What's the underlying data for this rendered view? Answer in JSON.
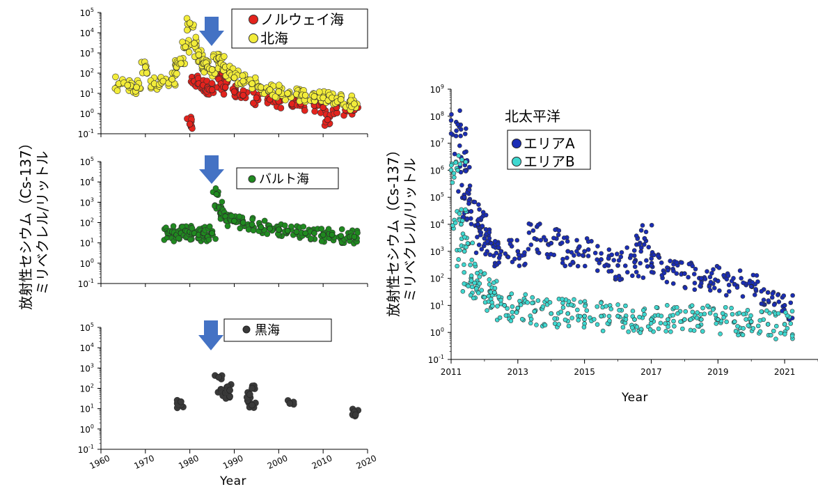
{
  "y_axis_title_line1": "放射性セシウム（Cs-137）",
  "y_axis_title_line2": "ミリベクレル/リットル",
  "ytick_base": "10",
  "chart_data": [
    {
      "id": "norway-north",
      "type": "scatter",
      "xlim": [
        1960,
        2020
      ],
      "ylim_log10": [
        -1,
        5
      ],
      "ytick_exponents": [
        "5",
        "4",
        "3",
        "2",
        "1",
        "0",
        "-1"
      ],
      "annotation": "arrow at 1986",
      "series": [
        {
          "name": "ノルウェイ海",
          "color": "#e3231d",
          "x": [
            1980,
            1981,
            1982,
            1983,
            1984,
            1985,
            1986,
            1987,
            1988,
            1990,
            1992,
            1995,
            1998,
            2000,
            2003,
            2005,
            2008,
            2010,
            2011,
            2013,
            2015,
            2017
          ],
          "y": [
            0.3,
            40,
            30,
            25,
            20,
            15,
            80,
            30,
            20,
            12,
            8,
            6,
            5,
            4,
            3,
            3,
            2.5,
            2,
            0.5,
            2,
            1.5,
            1.5
          ]
        },
        {
          "name": "北海",
          "color": "#f2ec3a",
          "x": [
            1964,
            1966,
            1968,
            1970,
            1972,
            1974,
            1976,
            1977,
            1978,
            1979,
            1980,
            1981,
            1982,
            1983,
            1984,
            1985,
            1986,
            1987,
            1988,
            1989,
            1990,
            1992,
            1994,
            1996,
            1998,
            2000,
            2002,
            2004,
            2006,
            2008,
            2010,
            2012,
            2014,
            2016,
            2017
          ],
          "y": [
            30,
            25,
            20,
            200,
            30,
            40,
            50,
            200,
            300,
            2000,
            30000,
            3000,
            800,
            300,
            200,
            150,
            500,
            300,
            200,
            100,
            60,
            40,
            30,
            20,
            15,
            12,
            10,
            9,
            8,
            7,
            6,
            6,
            5,
            4,
            3
          ]
        }
      ]
    },
    {
      "id": "baltic",
      "type": "scatter",
      "xlim": [
        1960,
        2020
      ],
      "ylim_log10": [
        -1,
        5
      ],
      "ytick_exponents": [
        "5",
        "4",
        "3",
        "2",
        "1",
        "0",
        "-1"
      ],
      "annotation": "arrow at 1986",
      "series": [
        {
          "name": "バルト海",
          "color": "#1f8a1f",
          "x": [
            1975,
            1976,
            1977,
            1978,
            1979,
            1980,
            1981,
            1982,
            1983,
            1984,
            1985,
            1986,
            1986.5,
            1987,
            1988,
            1989,
            1990,
            1992,
            1994,
            1996,
            1998,
            2000,
            2002,
            2004,
            2006,
            2008,
            2010,
            2012,
            2014,
            2016,
            2017
          ],
          "y": [
            30,
            35,
            25,
            30,
            40,
            35,
            30,
            25,
            30,
            20,
            30,
            2500,
            600,
            300,
            200,
            150,
            120,
            100,
            80,
            60,
            50,
            45,
            40,
            35,
            30,
            30,
            25,
            25,
            22,
            20,
            20
          ]
        }
      ]
    },
    {
      "id": "black",
      "type": "scatter",
      "xlim": [
        1960,
        2020
      ],
      "ylim_log10": [
        -1,
        5
      ],
      "ytick_exponents": [
        "5",
        "4",
        "3",
        "2",
        "1",
        "0",
        "-1"
      ],
      "xticks": [
        "1960",
        "1970",
        "1980",
        "1990",
        "2000",
        "2010",
        "2020"
      ],
      "xlabel": "Year",
      "annotation": "arrow at 1986",
      "series": [
        {
          "name": "黒海",
          "color": "#3a3a3a",
          "x": [
            1978,
            1978,
            1986.5,
            1987,
            1988,
            1988.5,
            1989,
            1989,
            1993,
            1993.5,
            1994,
            1994,
            2002.5,
            2017,
            2017.3
          ],
          "y": [
            15,
            22,
            350,
            90,
            60,
            120,
            40,
            80,
            25,
            50,
            100,
            15,
            18,
            7,
            5
          ]
        }
      ]
    },
    {
      "id": "north-pacific",
      "type": "scatter",
      "title": "北太平洋",
      "xlim": [
        2011,
        2022
      ],
      "ylim_log10": [
        -1,
        9
      ],
      "ytick_exponents": [
        "9",
        "8",
        "7",
        "6",
        "5",
        "4",
        "3",
        "2",
        "1",
        "0",
        "-1"
      ],
      "xticks": [
        "2011",
        "2013",
        "2015",
        "2017",
        "2019",
        "2021"
      ],
      "xlabel": "Year",
      "series": [
        {
          "name": "エリアA",
          "color": "#1a2db5",
          "x": [
            2011.2,
            2011.3,
            2011.4,
            2011.6,
            2011.8,
            2012,
            2012.2,
            2012.5,
            2013,
            2013.5,
            2014,
            2014.5,
            2015,
            2015.5,
            2016,
            2016.5,
            2016.8,
            2017,
            2017.5,
            2018,
            2018.5,
            2019,
            2019.5,
            2020,
            2020.5,
            2021
          ],
          "y": [
            50000000,
            3000000,
            100000,
            30000,
            10000,
            3000,
            2000,
            1000,
            1000,
            3000,
            2000,
            1000,
            1000,
            500,
            300,
            400,
            3000,
            300,
            200,
            150,
            100,
            80,
            60,
            50,
            30,
            10
          ]
        },
        {
          "name": "エリアB",
          "color": "#3fd8d0",
          "x": [
            2011.2,
            2011.3,
            2011.4,
            2011.6,
            2011.8,
            2012,
            2012.3,
            2012.6,
            2013,
            2013.5,
            2014,
            2014.5,
            2015,
            2015.5,
            2016,
            2016.5,
            2017,
            2017.5,
            2018,
            2018.5,
            2019,
            2019.5,
            2020,
            2020.5,
            2021
          ],
          "y": [
            1000000,
            10000,
            1000,
            100,
            50,
            20,
            30,
            10,
            8,
            6,
            5,
            5,
            4,
            4,
            4,
            3,
            3,
            3,
            3,
            3,
            3,
            2.5,
            2.5,
            2,
            2
          ]
        }
      ]
    }
  ]
}
